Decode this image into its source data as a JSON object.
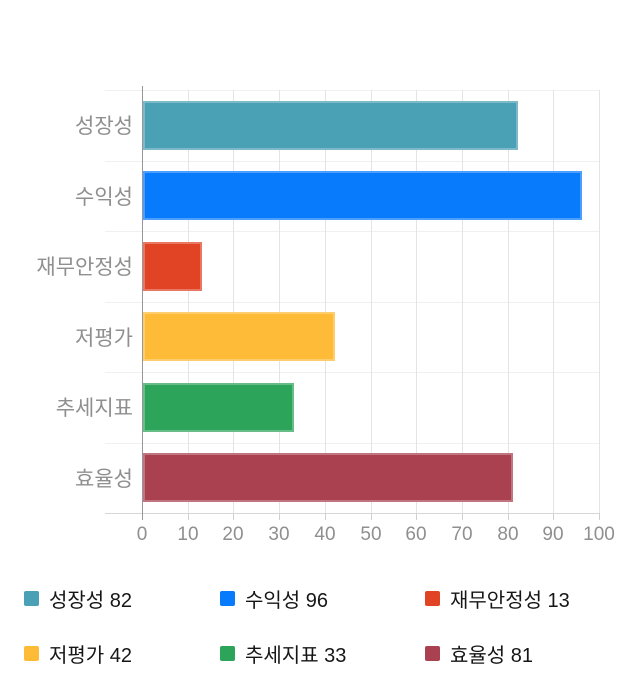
{
  "chart_data": {
    "type": "bar",
    "orientation": "horizontal",
    "title": "",
    "xlabel": "",
    "ylabel": "",
    "categories": [
      "성장성",
      "수익성",
      "재무안정성",
      "저평가",
      "추세지표",
      "효율성"
    ],
    "values": [
      82,
      96,
      13,
      42,
      33,
      81
    ],
    "colors": [
      "#4AA0B5",
      "#077BFB",
      "#E04424",
      "#FEBB37",
      "#2CA45A",
      "#AA4151"
    ],
    "xlim": [
      0,
      100
    ],
    "x_ticks": [
      0,
      10,
      20,
      30,
      40,
      50,
      60,
      70,
      80,
      90,
      100
    ],
    "grid": true,
    "legend_position": "bottom",
    "legend": [
      {
        "label": "성장성 82",
        "color": "#4AA0B5"
      },
      {
        "label": "수익성 96",
        "color": "#077BFB"
      },
      {
        "label": "재무안정성 13",
        "color": "#E04424"
      },
      {
        "label": "저평가 42",
        "color": "#FEBB37"
      },
      {
        "label": "추세지표 33",
        "color": "#2CA45A"
      },
      {
        "label": "효율성 81",
        "color": "#AA4151"
      }
    ]
  },
  "styles": {
    "background": "#ffffff",
    "axis_text_color": "#8f8f8f",
    "legend_text_color": "#161616",
    "vertical_gridline_color": "#e4e4e4",
    "row_gridline_color": "#f0f0f0",
    "x_axis_line_color": "#d6d6d6",
    "y_axis_line_color": "#97979b"
  }
}
